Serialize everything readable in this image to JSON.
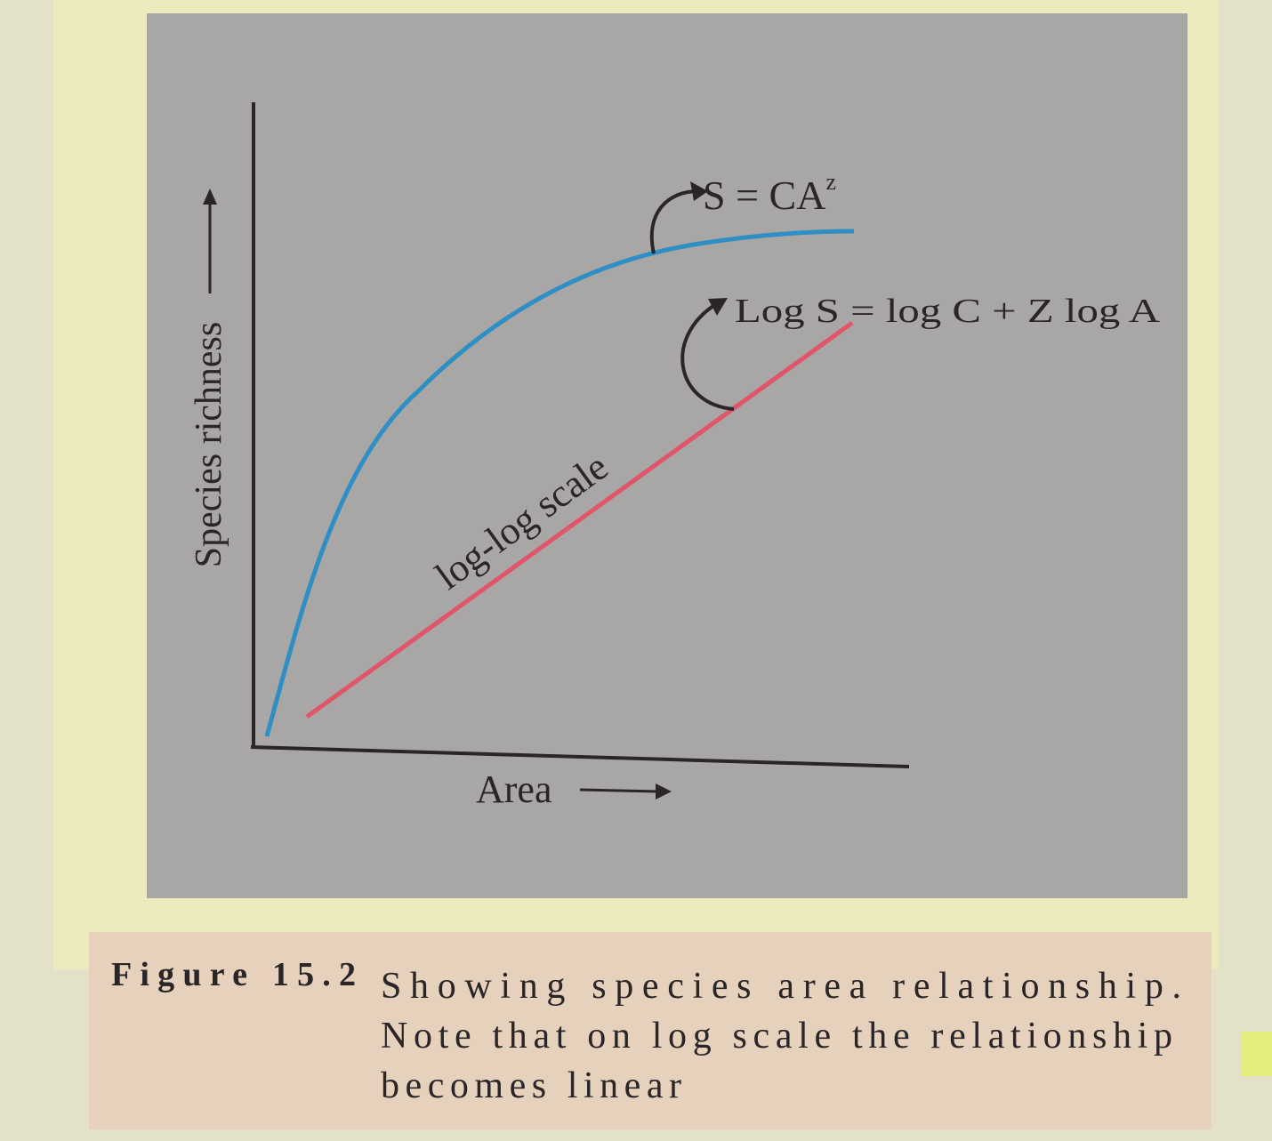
{
  "figure": {
    "y_axis_label": "Species richness",
    "x_axis_label": "Area",
    "power_law": {
      "base": "S = CA",
      "exponent": "z"
    },
    "log_equation": "Log S = log C + Z log A",
    "line_label": "log-log scale",
    "caption": {
      "label": "Figure 15.2",
      "lines": [
        "Showing species area relationship.",
        "Note that on log scale the relationship",
        "becomes linear"
      ]
    }
  }
}
